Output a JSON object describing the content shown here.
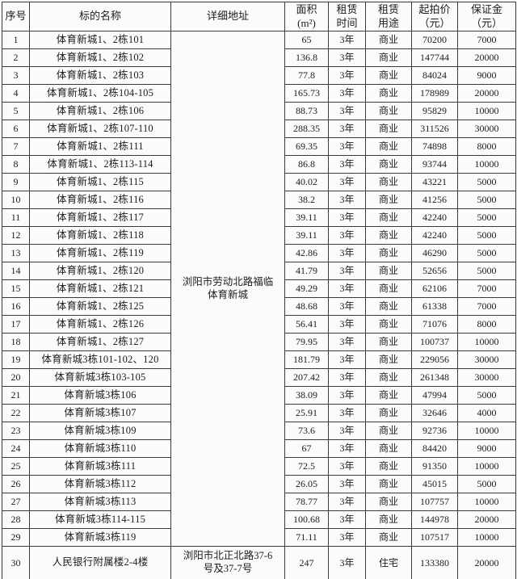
{
  "table": {
    "columns": [
      {
        "key": "no",
        "label": "序号",
        "sub": ""
      },
      {
        "key": "name",
        "label": "标的名称",
        "sub": ""
      },
      {
        "key": "address",
        "label": "详细地址",
        "sub": ""
      },
      {
        "key": "area",
        "label": "面积",
        "sub": "(m²)"
      },
      {
        "key": "term",
        "label": "租赁",
        "sub": "时间"
      },
      {
        "key": "use",
        "label": "租赁",
        "sub": "用途"
      },
      {
        "key": "price",
        "label": "起拍价",
        "sub": "（元）"
      },
      {
        "key": "deposit",
        "label": "保证金",
        "sub": "（元）"
      }
    ],
    "merged_address": "浏阳市劳动北路福临\n体育新城",
    "merged_address_rowspan": 29,
    "rows": [
      {
        "no": "1",
        "name": "体育新城1、2栋101",
        "area": "65",
        "term": "3年",
        "use": "商业",
        "price": "70200",
        "deposit": "7000"
      },
      {
        "no": "2",
        "name": "体育新城1、2栋102",
        "area": "136.8",
        "term": "3年",
        "use": "商业",
        "price": "147744",
        "deposit": "20000"
      },
      {
        "no": "3",
        "name": "体育新城1、2栋103",
        "area": "77.8",
        "term": "3年",
        "use": "商业",
        "price": "84024",
        "deposit": "9000"
      },
      {
        "no": "4",
        "name": "体育新城1、2栋104-105",
        "area": "165.73",
        "term": "3年",
        "use": "商业",
        "price": "178989",
        "deposit": "20000"
      },
      {
        "no": "5",
        "name": "体育新城1、2栋106",
        "area": "88.73",
        "term": "3年",
        "use": "商业",
        "price": "95829",
        "deposit": "10000"
      },
      {
        "no": "6",
        "name": "体育新城1、2栋107-110",
        "area": "288.35",
        "term": "3年",
        "use": "商业",
        "price": "311526",
        "deposit": "30000"
      },
      {
        "no": "7",
        "name": "体育新城1、2栋111",
        "area": "69.35",
        "term": "3年",
        "use": "商业",
        "price": "74898",
        "deposit": "8000"
      },
      {
        "no": "8",
        "name": "体育新城1、2栋113-114",
        "area": "86.8",
        "term": "3年",
        "use": "商业",
        "price": "93744",
        "deposit": "10000"
      },
      {
        "no": "9",
        "name": "体育新城1、2栋115",
        "area": "40.02",
        "term": "3年",
        "use": "商业",
        "price": "43221",
        "deposit": "5000"
      },
      {
        "no": "10",
        "name": "体育新城1、2栋116",
        "area": "38.2",
        "term": "3年",
        "use": "商业",
        "price": "41256",
        "deposit": "5000"
      },
      {
        "no": "11",
        "name": "体育新城1、2栋117",
        "area": "39.11",
        "term": "3年",
        "use": "商业",
        "price": "42240",
        "deposit": "5000"
      },
      {
        "no": "12",
        "name": "体育新城1、2栋118",
        "area": "39.11",
        "term": "3年",
        "use": "商业",
        "price": "42240",
        "deposit": "5000"
      },
      {
        "no": "13",
        "name": "体育新城1、2栋119",
        "area": "42.86",
        "term": "3年",
        "use": "商业",
        "price": "46290",
        "deposit": "5000"
      },
      {
        "no": "14",
        "name": "体育新城1、2栋120",
        "area": "41.79",
        "term": "3年",
        "use": "商业",
        "price": "52656",
        "deposit": "5000"
      },
      {
        "no": "15",
        "name": "体育新城1、2栋121",
        "area": "49.29",
        "term": "3年",
        "use": "商业",
        "price": "62106",
        "deposit": "7000"
      },
      {
        "no": "16",
        "name": "体育新城1、2栋125",
        "area": "48.68",
        "term": "3年",
        "use": "商业",
        "price": "61338",
        "deposit": "7000"
      },
      {
        "no": "17",
        "name": "体育新城1、2栋126",
        "area": "56.41",
        "term": "3年",
        "use": "商业",
        "price": "71076",
        "deposit": "8000"
      },
      {
        "no": "18",
        "name": "体育新城1、2栋127",
        "area": "79.95",
        "term": "3年",
        "use": "商业",
        "price": "100737",
        "deposit": "10000"
      },
      {
        "no": "19",
        "name": "体育新城3栋101-102、120",
        "area": "181.79",
        "term": "3年",
        "use": "商业",
        "price": "229056",
        "deposit": "30000"
      },
      {
        "no": "20",
        "name": "体育新城3栋103-105",
        "area": "207.42",
        "term": "3年",
        "use": "商业",
        "price": "261348",
        "deposit": "30000"
      },
      {
        "no": "21",
        "name": "体育新城3栋106",
        "area": "38.09",
        "term": "3年",
        "use": "商业",
        "price": "47994",
        "deposit": "5000"
      },
      {
        "no": "22",
        "name": "体育新城3栋107",
        "area": "25.91",
        "term": "3年",
        "use": "商业",
        "price": "32646",
        "deposit": "4000"
      },
      {
        "no": "23",
        "name": "体育新城3栋109",
        "area": "73.6",
        "term": "3年",
        "use": "商业",
        "price": "92736",
        "deposit": "10000"
      },
      {
        "no": "24",
        "name": "体育新城3栋110",
        "area": "67",
        "term": "3年",
        "use": "商业",
        "price": "84420",
        "deposit": "9000"
      },
      {
        "no": "25",
        "name": "体育新城3栋111",
        "area": "72.5",
        "term": "3年",
        "use": "商业",
        "price": "91350",
        "deposit": "10000"
      },
      {
        "no": "26",
        "name": "体育新城3栋112",
        "area": "26.05",
        "term": "3年",
        "use": "商业",
        "price": "45015",
        "deposit": "5000"
      },
      {
        "no": "27",
        "name": "体育新城3栋113",
        "area": "78.77",
        "term": "3年",
        "use": "商业",
        "price": "107757",
        "deposit": "10000"
      },
      {
        "no": "28",
        "name": "体育新城3栋114-115",
        "area": "100.68",
        "term": "3年",
        "use": "商业",
        "price": "144978",
        "deposit": "20000"
      },
      {
        "no": "29",
        "name": "体育新城3栋119",
        "area": "71.11",
        "term": "3年",
        "use": "商业",
        "price": "107517",
        "deposit": "10000"
      },
      {
        "no": "30",
        "name": "人民银行附属楼2-4楼",
        "address": "浏阳市北正北路37-6\n号及37-7号",
        "area": "247",
        "term": "3年",
        "use": "住宅",
        "price": "133380",
        "deposit": "20000",
        "tall": true
      }
    ]
  }
}
